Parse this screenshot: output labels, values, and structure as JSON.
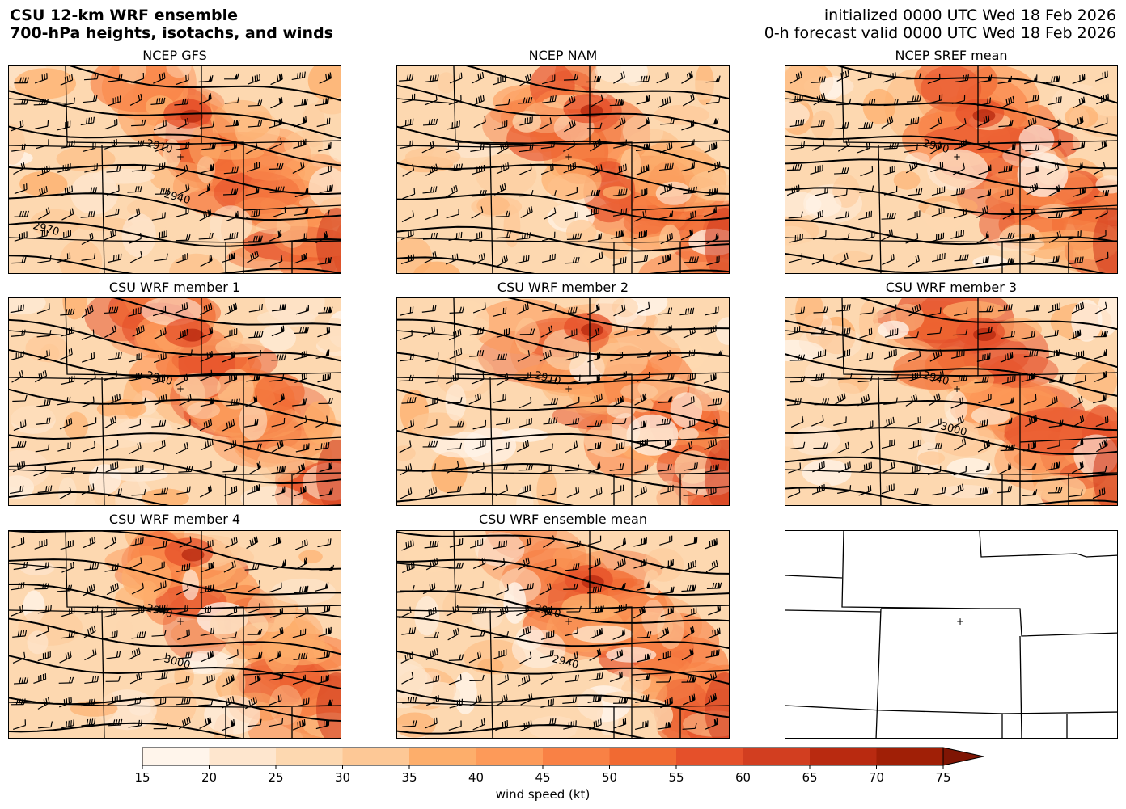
{
  "header": {
    "title_line1": "CSU 12-km WRF ensemble",
    "title_line2": "700-hPa heights, isotachs, and winds",
    "init_line": "initialized 0000 UTC Wed 18 Feb 2026",
    "valid_line": "0-h forecast valid 0000 UTC Wed 18 Feb 2026"
  },
  "panels": [
    {
      "title": "NCEP GFS",
      "seed": 11,
      "contour_labels": [
        {
          "text": "2910"
        },
        {
          "text": "2940"
        },
        {
          "text": "2970"
        }
      ]
    },
    {
      "title": "NCEP NAM",
      "seed": 23,
      "contour_labels": []
    },
    {
      "title": "NCEP SREF mean",
      "seed": 37,
      "contour_labels": [
        {
          "text": "2970"
        }
      ]
    },
    {
      "title": "CSU WRF member 1",
      "seed": 41,
      "contour_labels": [
        {
          "text": "2910"
        }
      ]
    },
    {
      "title": "CSU WRF member 2",
      "seed": 53,
      "contour_labels": [
        {
          "text": "2910"
        }
      ]
    },
    {
      "title": "CSU WRF member 3",
      "seed": 67,
      "contour_labels": [
        {
          "text": "2940"
        },
        {
          "text": "3000"
        }
      ]
    },
    {
      "title": "CSU WRF member 4",
      "seed": 71,
      "contour_labels": [
        {
          "text": "2940"
        },
        {
          "text": "3000"
        }
      ]
    },
    {
      "title": "CSU WRF ensemble mean",
      "seed": 83,
      "contour_labels": [
        {
          "text": "2910"
        },
        {
          "text": "2940"
        }
      ]
    }
  ],
  "colorbar": {
    "label": "wind speed (kt)",
    "ticks": [
      "15",
      "20",
      "25",
      "30",
      "35",
      "40",
      "45",
      "50",
      "55",
      "60",
      "65",
      "70",
      "75"
    ],
    "colors": [
      "#fff5eb",
      "#fee6ce",
      "#fdd8b0",
      "#fdc896",
      "#fdae6b",
      "#fd9a59",
      "#f98145",
      "#f16a32",
      "#e5502a",
      "#d23e20",
      "#b92a10",
      "#a01f06",
      "#7f1504"
    ],
    "extend": "max"
  }
}
